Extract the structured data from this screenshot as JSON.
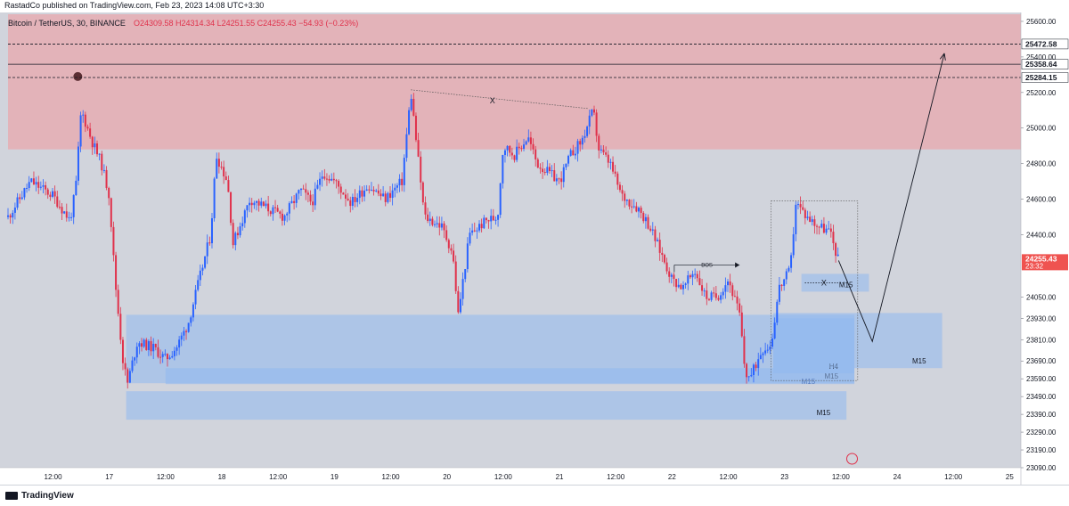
{
  "header": {
    "published": "RastadCo published on TradingView.com, Feb 23, 2023 14:08 UTC+3:30"
  },
  "legend": {
    "symbol": "Bitcoin / TetherUS, 30, BINANCE",
    "ohlc": "O24309.58  H24314.34  L24251.55  C24255.43  −54.93 (−0.23%)"
  },
  "footer": {
    "brand": "TradingView"
  },
  "colors": {
    "up": "#2962ff",
    "down": "#e0314b",
    "supply_zone": "#e3b3b9",
    "demand_zone": "#90b8f0",
    "price_tag": "#ef5350"
  },
  "chart_data": {
    "type": "candlestick",
    "y_range": [
      23090,
      25640
    ],
    "y_ticks": [
      "25600.00",
      "25400.00",
      "25200.00",
      "25000.00",
      "24800.00",
      "24600.00",
      "24400.00",
      "24050.00",
      "23930.00",
      "23810.00",
      "23690.00",
      "23590.00",
      "23490.00",
      "23390.00",
      "23290.00",
      "23190.00",
      "23090.00"
    ],
    "x_ticks": [
      {
        "t": 0.5,
        "label": "12:00"
      },
      {
        "t": 1,
        "label": "17"
      },
      {
        "t": 1.5,
        "label": "12:00"
      },
      {
        "t": 2,
        "label": "18"
      },
      {
        "t": 2.5,
        "label": "12:00"
      },
      {
        "t": 3,
        "label": "19"
      },
      {
        "t": 3.5,
        "label": "12:00"
      },
      {
        "t": 4,
        "label": "20"
      },
      {
        "t": 4.5,
        "label": "12:00"
      },
      {
        "t": 5,
        "label": "21"
      },
      {
        "t": 5.5,
        "label": "12:00"
      },
      {
        "t": 6,
        "label": "22"
      },
      {
        "t": 6.5,
        "label": "12:00"
      },
      {
        "t": 7,
        "label": "23"
      },
      {
        "t": 7.5,
        "label": "12:00"
      },
      {
        "t": 8,
        "label": "24"
      },
      {
        "t": 8.5,
        "label": "12:00"
      },
      {
        "t": 9,
        "label": "25"
      }
    ],
    "x_range": [
      0.1,
      9.1
    ],
    "price_levels": [
      {
        "price": 25472.58,
        "label": "25472.58",
        "style": "dashed"
      },
      {
        "price": 25358.64,
        "label": "25358.64",
        "style": "solid"
      },
      {
        "price": 25284.15,
        "label": "25284.15",
        "style": "dashed"
      }
    ],
    "last_price": {
      "label": "24255.43",
      "time": "23:32",
      "price": 24255.43
    },
    "path_points": [
      [
        0.1,
        24500
      ],
      [
        0.3,
        24700
      ],
      [
        0.5,
        24620
      ],
      [
        0.65,
        24480
      ],
      [
        0.7,
        24650
      ],
      [
        0.75,
        25100
      ],
      [
        0.85,
        24920
      ],
      [
        0.93,
        24800
      ],
      [
        1.0,
        24620
      ],
      [
        1.05,
        24150
      ],
      [
        1.12,
        23700
      ],
      [
        1.16,
        23560
      ],
      [
        1.25,
        23800
      ],
      [
        1.4,
        23760
      ],
      [
        1.5,
        23700
      ],
      [
        1.6,
        23770
      ],
      [
        1.7,
        23900
      ],
      [
        1.8,
        24150
      ],
      [
        1.9,
        24400
      ],
      [
        1.95,
        24850
      ],
      [
        2.05,
        24700
      ],
      [
        2.1,
        24350
      ],
      [
        2.25,
        24600
      ],
      [
        2.4,
        24550
      ],
      [
        2.55,
        24500
      ],
      [
        2.7,
        24650
      ],
      [
        2.8,
        24580
      ],
      [
        2.9,
        24750
      ],
      [
        3.0,
        24700
      ],
      [
        3.15,
        24580
      ],
      [
        3.3,
        24680
      ],
      [
        3.45,
        24600
      ],
      [
        3.6,
        24700
      ],
      [
        3.68,
        25200
      ],
      [
        3.8,
        24500
      ],
      [
        3.95,
        24450
      ],
      [
        4.05,
        24300
      ],
      [
        4.1,
        23950
      ],
      [
        4.2,
        24400
      ],
      [
        4.35,
        24480
      ],
      [
        4.45,
        24500
      ],
      [
        4.5,
        24900
      ],
      [
        4.6,
        24850
      ],
      [
        4.72,
        24950
      ],
      [
        4.8,
        24800
      ],
      [
        4.9,
        24750
      ],
      [
        5.0,
        24700
      ],
      [
        5.1,
        24850
      ],
      [
        5.2,
        24930
      ],
      [
        5.3,
        25100
      ],
      [
        5.35,
        24880
      ],
      [
        5.45,
        24800
      ],
      [
        5.55,
        24620
      ],
      [
        5.7,
        24550
      ],
      [
        5.8,
        24450
      ],
      [
        5.9,
        24300
      ],
      [
        6.0,
        24150
      ],
      [
        6.1,
        24100
      ],
      [
        6.2,
        24200
      ],
      [
        6.3,
        24050
      ],
      [
        6.4,
        24050
      ],
      [
        6.5,
        24150
      ],
      [
        6.6,
        23950
      ],
      [
        6.65,
        23620
      ],
      [
        6.7,
        23600
      ],
      [
        6.8,
        23760
      ],
      [
        6.88,
        23780
      ],
      [
        6.95,
        24100
      ],
      [
        7.0,
        24150
      ],
      [
        7.05,
        24200
      ],
      [
        7.1,
        24580
      ],
      [
        7.2,
        24500
      ],
      [
        7.3,
        24450
      ],
      [
        7.4,
        24420
      ],
      [
        7.48,
        24255.43
      ]
    ],
    "zones": [
      {
        "kind": "supply",
        "y_top": 25640,
        "y_bottom": 24880,
        "x_from": 0.1,
        "x_to": 9.1
      },
      {
        "kind": "demand",
        "label": "M15",
        "x_from": 1.15,
        "x_to": 7.62,
        "y_top": 23950,
        "y_bottom": 23565
      },
      {
        "kind": "demand",
        "label": "M15",
        "x_from": 1.15,
        "x_to": 7.55,
        "y_top": 23520,
        "y_bottom": 23360
      },
      {
        "kind": "demand",
        "label": "",
        "x_from": 1.5,
        "x_to": 7.62,
        "y_top": 23650,
        "y_bottom": 23560
      },
      {
        "kind": "demand",
        "label": "H4",
        "x_from": 6.9,
        "x_to": 7.62,
        "y_top": 23930,
        "y_bottom": 23620
      },
      {
        "kind": "demand",
        "label": "M15",
        "x_from": 6.9,
        "x_to": 8.4,
        "y_top": 23960,
        "y_bottom": 23650
      },
      {
        "kind": "demand",
        "label": "M15",
        "x_from": 7.15,
        "x_to": 7.75,
        "y_top": 24180,
        "y_bottom": 24080
      },
      {
        "kind": "label_only",
        "label": "M15",
        "x": 7.15,
        "y": 23560
      }
    ],
    "annotations": {
      "x_label_top": "X",
      "x_label_lower": "X",
      "bos": "BOS",
      "pivot_top_marker": {
        "x": 0.72,
        "y": 25290
      }
    },
    "projection": [
      [
        7.48,
        24255
      ],
      [
        7.78,
        23800
      ],
      [
        8.42,
        25420
      ]
    ]
  }
}
